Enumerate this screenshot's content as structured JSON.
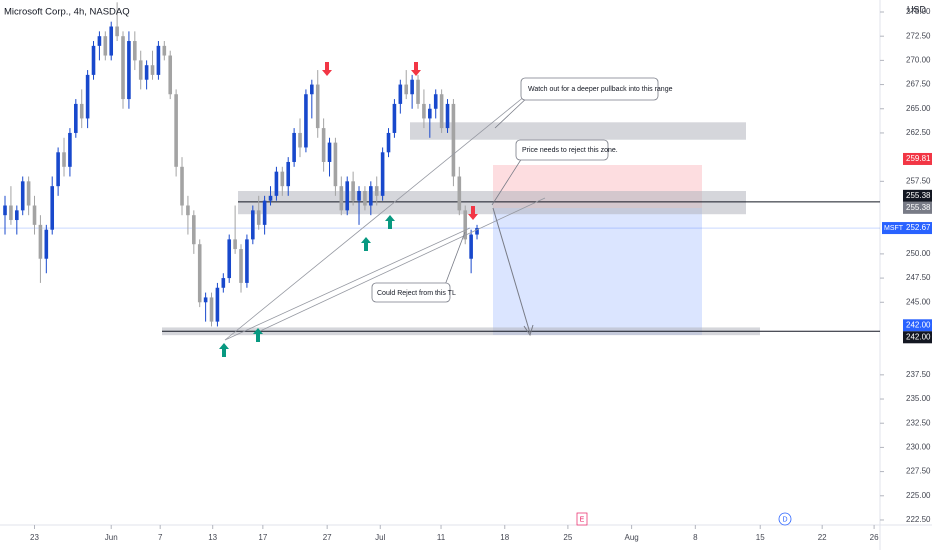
{
  "chart_data": {
    "type": "candlestick",
    "title": "Microsoft Corp., 4h, NASDAQ",
    "currency": "USD",
    "up_color": "#1848cc",
    "down_color": "#a3a3a3",
    "xlim": [
      -0.85,
      148.3
    ],
    "ylim": [
      221.98,
      276.24
    ],
    "xticks": [
      {
        "value": 5,
        "label": "23"
      },
      {
        "value": 18,
        "label": "Jun"
      },
      {
        "value": 26.3,
        "label": "7"
      },
      {
        "value": 35.2,
        "label": "13"
      },
      {
        "value": 43.7,
        "label": "17"
      },
      {
        "value": 54.6,
        "label": "27"
      },
      {
        "value": 63.6,
        "label": "Jul"
      },
      {
        "value": 73.9,
        "label": "11"
      },
      {
        "value": 84.7,
        "label": "18"
      },
      {
        "value": 95.4,
        "label": "25"
      },
      {
        "value": 106.2,
        "label": "Aug"
      },
      {
        "value": 117,
        "label": "8"
      },
      {
        "value": 128,
        "label": "15"
      },
      {
        "value": 138.5,
        "label": "22"
      },
      {
        "value": 147.3,
        "label": "26"
      }
    ],
    "yticks": [
      {
        "value": 275,
        "label": "275.00"
      },
      {
        "value": 272.5,
        "label": "272.50"
      },
      {
        "value": 270,
        "label": "270.00"
      },
      {
        "value": 267.5,
        "label": "267.50"
      },
      {
        "value": 265,
        "label": "265.00"
      },
      {
        "value": 262.5,
        "label": "262.50"
      },
      {
        "value": 257.5,
        "label": "257.50"
      },
      {
        "value": 250,
        "label": "250.00"
      },
      {
        "value": 247.5,
        "label": "247.50"
      },
      {
        "value": 245,
        "label": "245.00"
      },
      {
        "value": 237.5,
        "label": "237.50"
      },
      {
        "value": 235,
        "label": "235.00"
      },
      {
        "value": 232.5,
        "label": "232.50"
      },
      {
        "value": 230,
        "label": "230.00"
      },
      {
        "value": 227.5,
        "label": "227.50"
      },
      {
        "value": 225,
        "label": "225.00"
      },
      {
        "value": 222.5,
        "label": "222.50"
      }
    ],
    "candles": [
      {
        "o": 254,
        "h": 256,
        "l": 252,
        "c": 255
      },
      {
        "o": 255,
        "h": 257,
        "l": 253,
        "c": 253.5
      },
      {
        "o": 253.5,
        "h": 255,
        "l": 252,
        "c": 254.5
      },
      {
        "o": 254.5,
        "h": 258,
        "l": 254,
        "c": 257.5
      },
      {
        "o": 257.5,
        "h": 258,
        "l": 254,
        "c": 255
      },
      {
        "o": 255,
        "h": 256,
        "l": 252,
        "c": 253
      },
      {
        "o": 253,
        "h": 254,
        "l": 247,
        "c": 249.5
      },
      {
        "o": 249.5,
        "h": 253,
        "l": 248,
        "c": 252.5
      },
      {
        "o": 252.5,
        "h": 258,
        "l": 252,
        "c": 257
      },
      {
        "o": 257,
        "h": 261,
        "l": 256,
        "c": 260.5
      },
      {
        "o": 260.5,
        "h": 262,
        "l": 258,
        "c": 259
      },
      {
        "o": 259,
        "h": 263,
        "l": 258,
        "c": 262.5
      },
      {
        "o": 262.5,
        "h": 266,
        "l": 262,
        "c": 265.5
      },
      {
        "o": 265.5,
        "h": 267,
        "l": 263,
        "c": 264
      },
      {
        "o": 264,
        "h": 269,
        "l": 263,
        "c": 268.5
      },
      {
        "o": 268.5,
        "h": 272,
        "l": 268,
        "c": 271.5
      },
      {
        "o": 271.5,
        "h": 273,
        "l": 270,
        "c": 272.5
      },
      {
        "o": 272.5,
        "h": 273,
        "l": 270,
        "c": 270.5
      },
      {
        "o": 270.5,
        "h": 274,
        "l": 270,
        "c": 273.5
      },
      {
        "o": 273.5,
        "h": 276,
        "l": 272,
        "c": 272.5
      },
      {
        "o": 272.5,
        "h": 273,
        "l": 265,
        "c": 266
      },
      {
        "o": 266,
        "h": 273,
        "l": 265,
        "c": 272
      },
      {
        "o": 272,
        "h": 273,
        "l": 269,
        "c": 270
      },
      {
        "o": 270,
        "h": 271,
        "l": 267,
        "c": 268
      },
      {
        "o": 268,
        "h": 270,
        "l": 267,
        "c": 269.5
      },
      {
        "o": 269.5,
        "h": 271,
        "l": 268,
        "c": 268.5
      },
      {
        "o": 268.5,
        "h": 272,
        "l": 268,
        "c": 271.5
      },
      {
        "o": 271.5,
        "h": 272,
        "l": 270,
        "c": 270.5
      },
      {
        "o": 270.5,
        "h": 271,
        "l": 266,
        "c": 266.5
      },
      {
        "o": 266.5,
        "h": 267,
        "l": 258,
        "c": 259
      },
      {
        "o": 259,
        "h": 260,
        "l": 254,
        "c": 255
      },
      {
        "o": 255,
        "h": 256,
        "l": 252,
        "c": 254
      },
      {
        "o": 254,
        "h": 254.5,
        "l": 250,
        "c": 251
      },
      {
        "o": 251,
        "h": 251.5,
        "l": 244.5,
        "c": 245
      },
      {
        "o": 245,
        "h": 246,
        "l": 243,
        "c": 245.5
      },
      {
        "o": 245.5,
        "h": 246,
        "l": 242.5,
        "c": 243
      },
      {
        "o": 243,
        "h": 247,
        "l": 242.5,
        "c": 246.5
      },
      {
        "o": 246.5,
        "h": 248,
        "l": 246,
        "c": 247.5
      },
      {
        "o": 247.5,
        "h": 252,
        "l": 247,
        "c": 251.5
      },
      {
        "o": 251.5,
        "h": 255,
        "l": 250,
        "c": 250.5
      },
      {
        "o": 250.5,
        "h": 251,
        "l": 246,
        "c": 247
      },
      {
        "o": 247,
        "h": 252,
        "l": 246.5,
        "c": 251.5
      },
      {
        "o": 251.5,
        "h": 255,
        "l": 251,
        "c": 254.5
      },
      {
        "o": 254.5,
        "h": 256,
        "l": 252.5,
        "c": 253
      },
      {
        "o": 253,
        "h": 256,
        "l": 252,
        "c": 255.5
      },
      {
        "o": 255.5,
        "h": 257,
        "l": 255,
        "c": 256
      },
      {
        "o": 256,
        "h": 259,
        "l": 255.5,
        "c": 258.5
      },
      {
        "o": 258.5,
        "h": 259,
        "l": 256,
        "c": 257
      },
      {
        "o": 257,
        "h": 260,
        "l": 256,
        "c": 259.5
      },
      {
        "o": 259.5,
        "h": 263,
        "l": 259,
        "c": 262.5
      },
      {
        "o": 262.5,
        "h": 264,
        "l": 260,
        "c": 261
      },
      {
        "o": 261,
        "h": 267,
        "l": 260.5,
        "c": 266.5
      },
      {
        "o": 266.5,
        "h": 268,
        "l": 264,
        "c": 267.5
      },
      {
        "o": 267.5,
        "h": 269,
        "l": 262,
        "c": 263
      },
      {
        "o": 263,
        "h": 264,
        "l": 258.5,
        "c": 259.5
      },
      {
        "o": 259.5,
        "h": 262,
        "l": 258,
        "c": 261.5
      },
      {
        "o": 261.5,
        "h": 262,
        "l": 256,
        "c": 257
      },
      {
        "o": 257,
        "h": 258,
        "l": 254,
        "c": 254.5
      },
      {
        "o": 254.5,
        "h": 258,
        "l": 254,
        "c": 257.5
      },
      {
        "o": 257.5,
        "h": 258.5,
        "l": 255,
        "c": 255.5
      },
      {
        "o": 255.5,
        "h": 257,
        "l": 253,
        "c": 256.5
      },
      {
        "o": 256.5,
        "h": 257,
        "l": 254.5,
        "c": 255
      },
      {
        "o": 255,
        "h": 257.5,
        "l": 254,
        "c": 257
      },
      {
        "o": 257,
        "h": 258,
        "l": 255,
        "c": 256
      },
      {
        "o": 256,
        "h": 261,
        "l": 255.5,
        "c": 260.5
      },
      {
        "o": 260.5,
        "h": 263,
        "l": 260,
        "c": 262.5
      },
      {
        "o": 262.5,
        "h": 266,
        "l": 262,
        "c": 265.5
      },
      {
        "o": 265.5,
        "h": 268,
        "l": 264.5,
        "c": 267.5
      },
      {
        "o": 267.5,
        "h": 269,
        "l": 266,
        "c": 266.5
      },
      {
        "o": 266.5,
        "h": 268.5,
        "l": 265,
        "c": 268
      },
      {
        "o": 268,
        "h": 268.5,
        "l": 265,
        "c": 265.5
      },
      {
        "o": 265.5,
        "h": 267,
        "l": 263,
        "c": 264
      },
      {
        "o": 264,
        "h": 265.5,
        "l": 262,
        "c": 265
      },
      {
        "o": 265,
        "h": 267,
        "l": 264,
        "c": 266.5
      },
      {
        "o": 266.5,
        "h": 267,
        "l": 262.5,
        "c": 263
      },
      {
        "o": 263,
        "h": 266,
        "l": 262.5,
        "c": 265.5
      },
      {
        "o": 265.5,
        "h": 266,
        "l": 257,
        "c": 258
      },
      {
        "o": 258,
        "h": 259,
        "l": 254,
        "c": 254.5
      },
      {
        "o": 254.5,
        "h": 255,
        "l": 251,
        "c": 251.5
      },
      {
        "o": 249.5,
        "h": 252.5,
        "l": 248,
        "c": 252
      },
      {
        "o": 252,
        "h": 253,
        "l": 251.5,
        "c": 252.67
      }
    ],
    "zones": [
      {
        "lo": 261.8,
        "hi": 263.6
      },
      {
        "lo": 254.1,
        "hi": 256.5
      },
      {
        "lo": 241.6,
        "hi": 242.4
      }
    ],
    "price_labels": [
      {
        "value": 259.81,
        "bg": "#f23645"
      },
      {
        "value": 255.38,
        "bg": "#131722"
      },
      {
        "value": 255.38,
        "bg": "#787b86"
      },
      {
        "name": "MSFT",
        "value": 252.67,
        "bg": "#2962ff"
      },
      {
        "value": 242,
        "label": "242.00",
        "bg": "#2962ff"
      },
      {
        "value": 242,
        "label": "242.00",
        "bg": "#131722"
      }
    ],
    "annotations": [
      "Watch out for a deeper pullback into this range",
      "Price needs to reject this zone.",
      "Could Reject from this TL"
    ],
    "events": [
      "E",
      "D"
    ]
  }
}
